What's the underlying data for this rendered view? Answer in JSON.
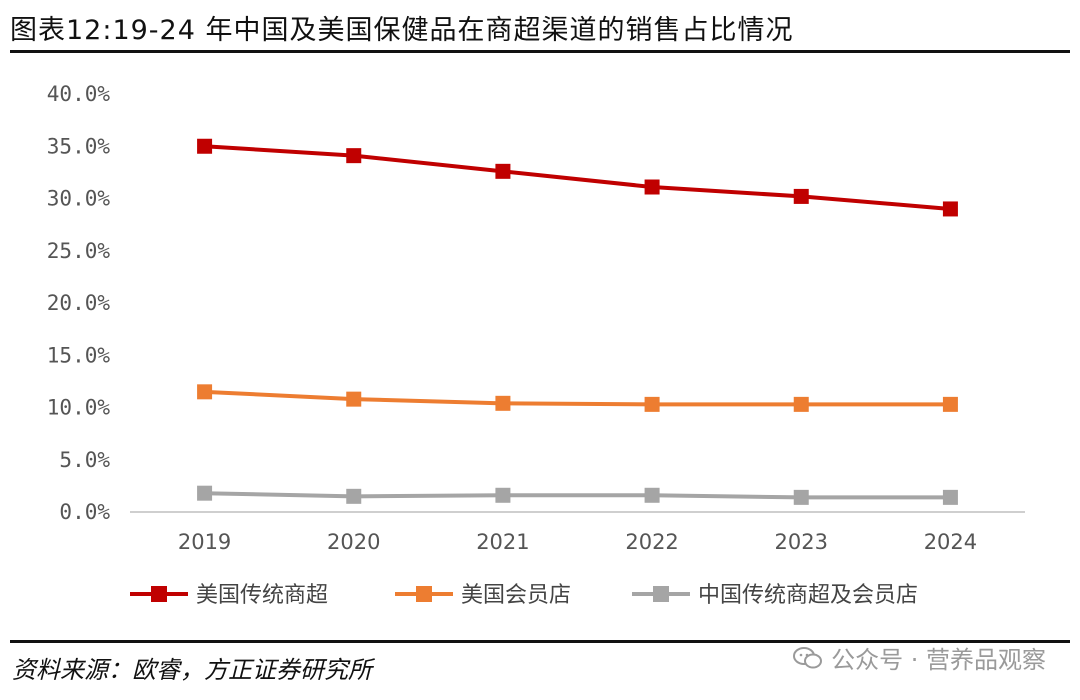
{
  "title": "图表12:19-24 年中国及美国保健品在商超渠道的销售占比情况",
  "source": "资料来源：欧睿，方正证券研究所",
  "watermark": "公众号 · 营养品观察",
  "chart_data": {
    "type": "line",
    "categories": [
      "2019",
      "2020",
      "2021",
      "2022",
      "2023",
      "2024"
    ],
    "ylim": [
      0,
      40
    ],
    "yticks": [
      0,
      5,
      10,
      15,
      20,
      25,
      30,
      35,
      40
    ],
    "ytick_labels": [
      "0.0%",
      "5.0%",
      "10.0%",
      "15.0%",
      "20.0%",
      "25.0%",
      "30.0%",
      "35.0%",
      "40.0%"
    ],
    "grid": false,
    "legend": "bottom",
    "series": [
      {
        "name": "美国传统商超",
        "color": "#C00000",
        "values": [
          35.0,
          34.1,
          32.6,
          31.1,
          30.2,
          29.0
        ]
      },
      {
        "name": "美国会员店",
        "color": "#ED7D31",
        "values": [
          11.5,
          10.8,
          10.4,
          10.3,
          10.3,
          10.3
        ]
      },
      {
        "name": "中国传统商超及会员店",
        "color": "#A5A5A5",
        "values": [
          1.8,
          1.5,
          1.6,
          1.6,
          1.4,
          1.4
        ]
      }
    ]
  }
}
